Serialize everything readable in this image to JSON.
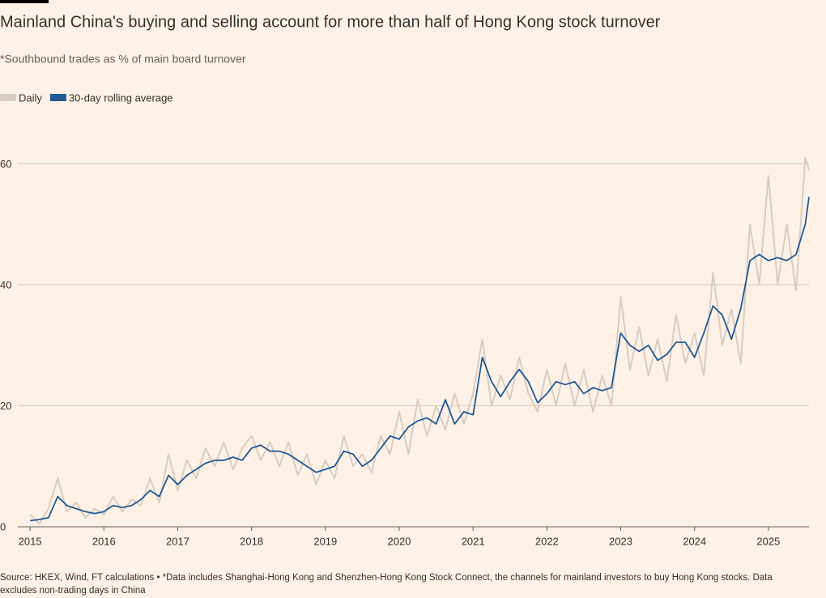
{
  "chart_data": {
    "type": "line",
    "title": "Mainland China's buying and selling account for more than half of Hong Kong stock turnover",
    "subtitle": "*Southbound trades as % of main board turnover",
    "source": "Source: HKEX, Wind, FT calculations • *Data includes Shanghai-Hong Kong and Shenzhen-Hong Kong Stock Connect, the channels for mainland investors to buy Hong Kong stocks. Data excludes non-trading days in China",
    "x": [
      2015,
      2015.125,
      2015.25,
      2015.375,
      2015.5,
      2015.625,
      2015.75,
      2015.875,
      2016,
      2016.125,
      2016.25,
      2016.375,
      2016.5,
      2016.625,
      2016.75,
      2016.875,
      2017,
      2017.125,
      2017.25,
      2017.375,
      2017.5,
      2017.625,
      2017.75,
      2017.875,
      2018,
      2018.125,
      2018.25,
      2018.375,
      2018.5,
      2018.625,
      2018.75,
      2018.875,
      2019,
      2019.125,
      2019.25,
      2019.375,
      2019.5,
      2019.625,
      2019.75,
      2019.875,
      2020,
      2020.125,
      2020.25,
      2020.375,
      2020.5,
      2020.625,
      2020.75,
      2020.875,
      2021,
      2021.125,
      2021.25,
      2021.375,
      2021.5,
      2021.625,
      2021.75,
      2021.875,
      2022,
      2022.125,
      2022.25,
      2022.375,
      2022.5,
      2022.625,
      2022.75,
      2022.875,
      2023,
      2023.125,
      2023.25,
      2023.375,
      2023.5,
      2023.625,
      2023.75,
      2023.875,
      2024,
      2024.125,
      2024.25,
      2024.375,
      2024.5,
      2024.625,
      2024.75,
      2024.875,
      2025,
      2025.125,
      2025.25,
      2025.375,
      2025.5,
      2025.55
    ],
    "series": [
      {
        "name": "Daily",
        "color": "#d8ccc3",
        "values": [
          2,
          0.5,
          3,
          8,
          2.5,
          4,
          1.5,
          3,
          2,
          5,
          2.5,
          4.5,
          3.5,
          8,
          4,
          12,
          6,
          11,
          8,
          13,
          10,
          14,
          9.5,
          13,
          15,
          11,
          14,
          10,
          14,
          8.5,
          12,
          7,
          11,
          8,
          15,
          10,
          12,
          9,
          15,
          12,
          19,
          12,
          21,
          15,
          20,
          16,
          22,
          17,
          22,
          31,
          20,
          25,
          21,
          28,
          22,
          19,
          26,
          20,
          27,
          20,
          26,
          19,
          25,
          20,
          38,
          26,
          33,
          25,
          31,
          24,
          35,
          27,
          32,
          25,
          42,
          30,
          36,
          27,
          50,
          40,
          58,
          40,
          50,
          39,
          61,
          59
        ]
      },
      {
        "name": "30-day rolling average",
        "color": "#1f5a96",
        "values": [
          1,
          1.2,
          1.5,
          5,
          3.5,
          3,
          2.5,
          2.2,
          2.5,
          3.5,
          3.2,
          3.5,
          4.5,
          6,
          5,
          8.5,
          7,
          8.5,
          9.5,
          10.5,
          11,
          11,
          11.5,
          11,
          13,
          13.5,
          12.5,
          12.5,
          12,
          11,
          10,
          9,
          9.5,
          10,
          12.5,
          12,
          10,
          11,
          13,
          15,
          14.5,
          16.5,
          17.5,
          18,
          17,
          21,
          17,
          19,
          18.5,
          28,
          24,
          21.5,
          24,
          26,
          24,
          20.5,
          22,
          24,
          23.5,
          24,
          22,
          23,
          22.5,
          23,
          32,
          30,
          29,
          30,
          27.5,
          28.5,
          30.5,
          30.5,
          28,
          32,
          36.5,
          35,
          31,
          36,
          44,
          45,
          44,
          44.5,
          44,
          45,
          50,
          54.5
        ]
      }
    ],
    "xlim": [
      2014.9,
      2025.55
    ],
    "ylim": [
      0,
      65
    ],
    "xticks": [
      2015,
      2016,
      2017,
      2018,
      2019,
      2020,
      2021,
      2022,
      2023,
      2024,
      2025
    ],
    "yticks": [
      0,
      20,
      40,
      60
    ],
    "grid": true
  }
}
